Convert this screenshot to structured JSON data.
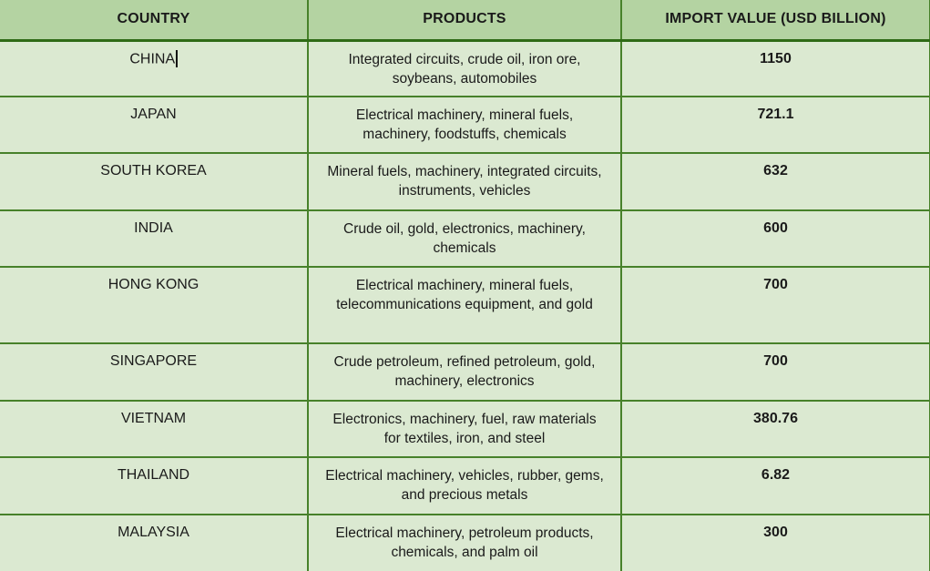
{
  "colors": {
    "header_bg": "#b4d3a2",
    "row_bg": "#dbe9d1",
    "border": "#47812a",
    "border_dark": "#2f6b16",
    "text": "#1a1a1a"
  },
  "editing": {
    "caret_after": "CHINA"
  },
  "table": {
    "header": [
      "COUNTRY",
      "PRODUCTS",
      "IMPORT VALUE (USD BILLION)"
    ],
    "rows": [
      {
        "country": "CHINA",
        "products": "Integrated circuits, crude oil, iron ore, soybeans, automobiles",
        "value": "1150"
      },
      {
        "country": "JAPAN",
        "products": "Electrical machinery, mineral fuels, machinery, foodstuffs, chemicals",
        "value": "721.1"
      },
      {
        "country": "SOUTH KOREA",
        "products": "Mineral fuels, machinery, integrated circuits, instruments, vehicles",
        "value": "632"
      },
      {
        "country": "INDIA",
        "products": "Crude oil, gold, electronics, machinery, chemicals",
        "value": "600"
      },
      {
        "country": "HONG KONG",
        "products": "Electrical machinery, mineral fuels, telecommunications equipment, and gold",
        "value": "700"
      },
      {
        "country": "SINGAPORE",
        "products": "Crude petroleum, refined petroleum, gold, machinery, electronics",
        "value": "700"
      },
      {
        "country": "VIETNAM",
        "products": "Electronics, machinery, fuel, raw materials for textiles, iron, and steel",
        "value": "380.76"
      },
      {
        "country": "THAILAND",
        "products": "Electrical machinery, vehicles, rubber, gems, and precious metals",
        "value": "6.82"
      },
      {
        "country": "MALAYSIA",
        "products": "Electrical machinery, petroleum products, chemicals, and palm oil",
        "value": "300"
      }
    ]
  }
}
